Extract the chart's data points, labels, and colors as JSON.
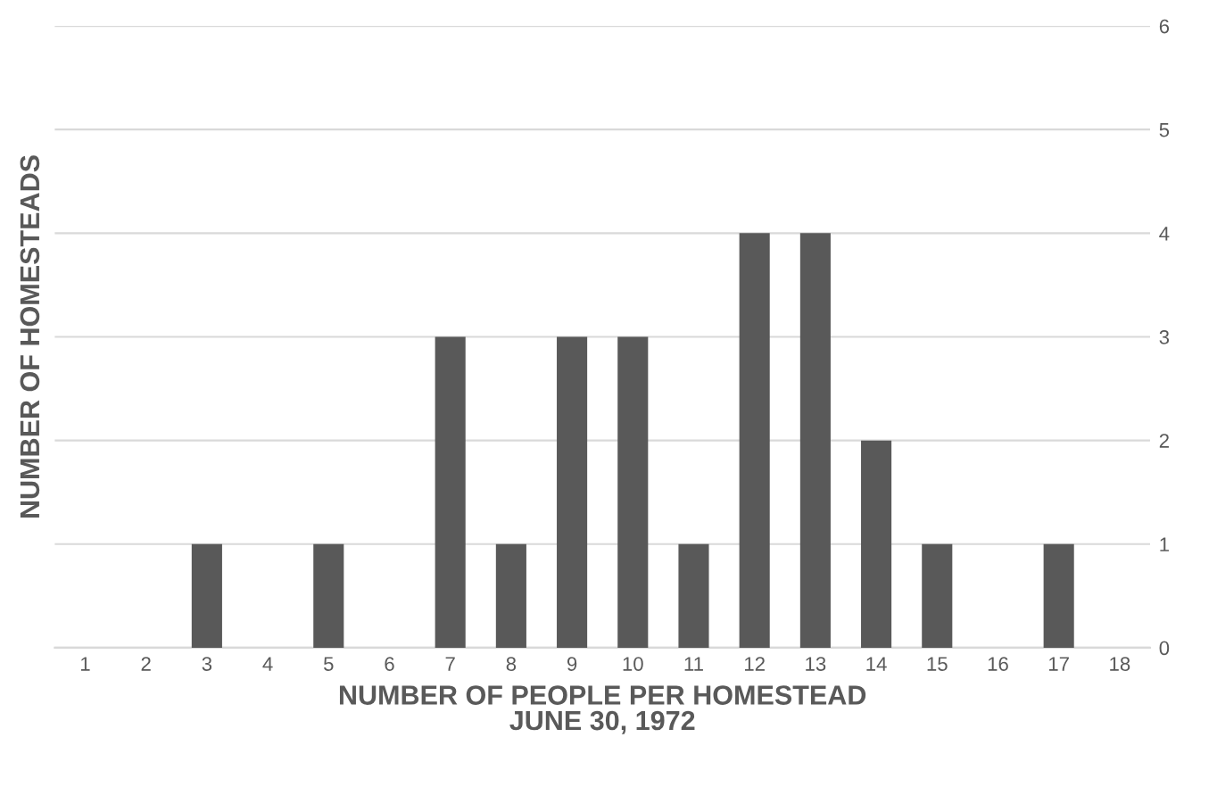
{
  "chart_data": {
    "type": "bar",
    "categories": [
      "1",
      "2",
      "3",
      "4",
      "5",
      "6",
      "7",
      "8",
      "9",
      "10",
      "11",
      "12",
      "13",
      "14",
      "15",
      "16",
      "17",
      "18"
    ],
    "values": [
      0,
      0,
      1,
      0,
      1,
      0,
      3,
      1,
      3,
      3,
      1,
      4,
      4,
      2,
      1,
      0,
      1,
      0
    ],
    "color": "#595959",
    "xlabel": "NUMBER OF PEOPLE PER HOMESTEAD\nJUNE 30, 1972",
    "ylabel": "NUMBER OF HOMESTEADS",
    "ylim": [
      0,
      6
    ],
    "yticks": [
      0,
      1,
      2,
      3,
      4,
      5,
      6
    ],
    "grid": "y",
    "legend": false
  }
}
